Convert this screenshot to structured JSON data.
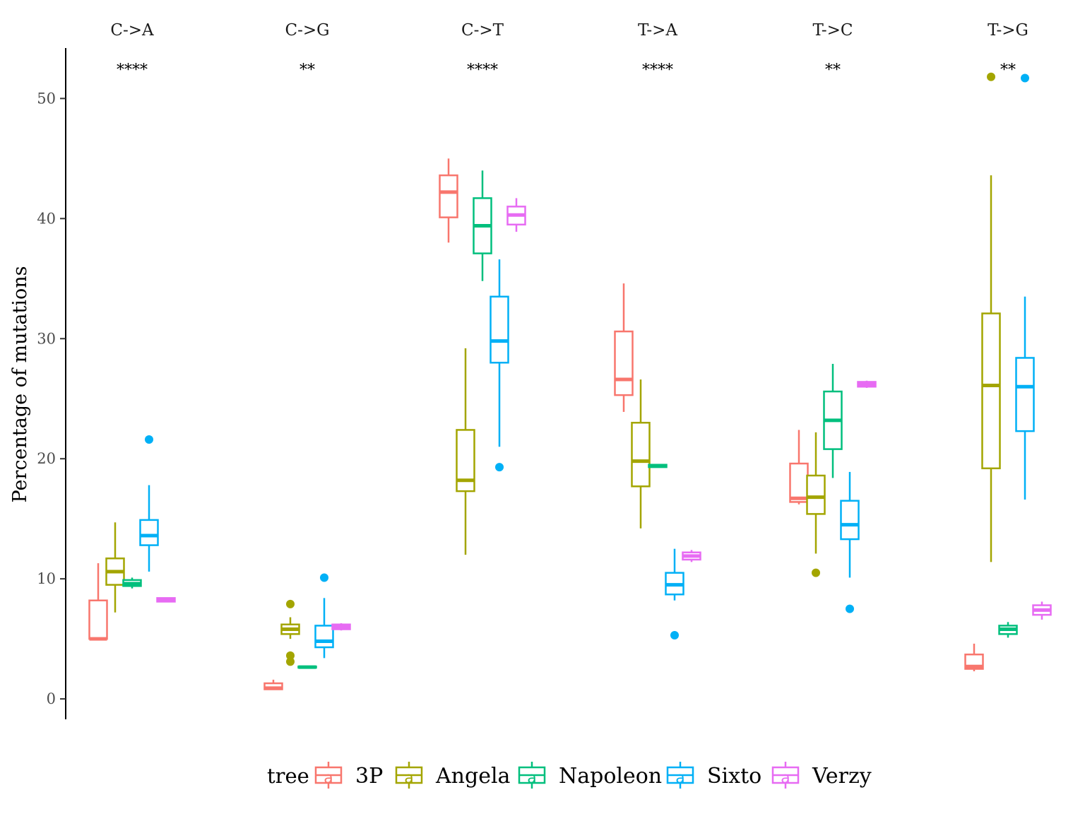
{
  "chart_data": {
    "type": "boxplot",
    "title": "",
    "ylabel": "Percentage of mutations",
    "xlabel": "",
    "ylim": [
      -1.7,
      54.2
    ],
    "yticks": [
      0,
      10,
      20,
      30,
      40,
      50
    ],
    "grid": false,
    "legend": {
      "title": "tree",
      "position": "bottom",
      "entries": [
        "3P",
        "Angela",
        "Napoleon",
        "Sixto",
        "Verzy"
      ],
      "key_glyph": "a"
    },
    "colors": {
      "3P": "#F8766D",
      "Angela": "#A3A500",
      "Napoleon": "#00BF7D",
      "Sixto": "#00B0F6",
      "Verzy": "#E76BF3"
    },
    "categories": [
      "C->A",
      "C->G",
      "C->T",
      "T->A",
      "T->C",
      "T->G"
    ],
    "significance": [
      "****",
      "**",
      "****",
      "****",
      "**",
      "**"
    ],
    "series": [
      {
        "name": "3P",
        "boxes": [
          {
            "q1": 5.0,
            "median": 5.0,
            "q3": 8.2,
            "whisker_low": 5.0,
            "whisker_high": 11.3,
            "outliers": []
          },
          {
            "q1": 0.8,
            "median": 0.9,
            "q3": 1.3,
            "whisker_low": 0.8,
            "whisker_high": 1.6,
            "outliers": []
          },
          {
            "q1": 40.1,
            "median": 42.2,
            "q3": 43.6,
            "whisker_low": 38.0,
            "whisker_high": 45.0,
            "outliers": []
          },
          {
            "q1": 25.3,
            "median": 26.6,
            "q3": 30.6,
            "whisker_low": 23.9,
            "whisker_high": 34.6,
            "outliers": []
          },
          {
            "q1": 16.4,
            "median": 16.7,
            "q3": 19.6,
            "whisker_low": 16.2,
            "whisker_high": 22.4,
            "outliers": []
          },
          {
            "q1": 2.5,
            "median": 2.7,
            "q3": 3.7,
            "whisker_low": 2.3,
            "whisker_high": 4.6,
            "outliers": []
          }
        ]
      },
      {
        "name": "Angela",
        "boxes": [
          {
            "q1": 9.5,
            "median": 10.6,
            "q3": 11.7,
            "whisker_low": 7.2,
            "whisker_high": 14.7,
            "outliers": []
          },
          {
            "q1": 5.4,
            "median": 5.8,
            "q3": 6.2,
            "whisker_low": 5.0,
            "whisker_high": 6.8,
            "outliers": [
              7.9,
              3.6,
              3.1
            ]
          },
          {
            "q1": 17.3,
            "median": 18.2,
            "q3": 22.4,
            "whisker_low": 12.0,
            "whisker_high": 29.2,
            "outliers": []
          },
          {
            "q1": 17.7,
            "median": 19.8,
            "q3": 23.0,
            "whisker_low": 14.2,
            "whisker_high": 26.6,
            "outliers": []
          },
          {
            "q1": 15.4,
            "median": 16.8,
            "q3": 18.6,
            "whisker_low": 12.1,
            "whisker_high": 22.2,
            "outliers": [
              10.5
            ]
          },
          {
            "q1": 19.2,
            "median": 26.1,
            "q3": 32.1,
            "whisker_low": 11.4,
            "whisker_high": 43.6,
            "outliers": [
              51.8
            ]
          }
        ]
      },
      {
        "name": "Napoleon",
        "boxes": [
          {
            "q1": 9.4,
            "median": 9.6,
            "q3": 9.9,
            "whisker_low": 9.2,
            "whisker_high": 10.1,
            "outliers": []
          },
          {
            "q1": 2.6,
            "median": 2.65,
            "q3": 2.7,
            "whisker_low": 2.6,
            "whisker_high": 2.7,
            "outliers": []
          },
          {
            "q1": 37.1,
            "median": 39.4,
            "q3": 41.7,
            "whisker_low": 34.8,
            "whisker_high": 44.0,
            "outliers": []
          },
          {
            "q1": 19.3,
            "median": 19.4,
            "q3": 19.5,
            "whisker_low": 19.3,
            "whisker_high": 19.5,
            "outliers": []
          },
          {
            "q1": 20.8,
            "median": 23.2,
            "q3": 25.6,
            "whisker_low": 18.4,
            "whisker_high": 27.9,
            "outliers": []
          },
          {
            "q1": 5.4,
            "median": 5.8,
            "q3": 6.1,
            "whisker_low": 5.1,
            "whisker_high": 6.4,
            "outliers": []
          }
        ]
      },
      {
        "name": "Sixto",
        "boxes": [
          {
            "q1": 12.8,
            "median": 13.6,
            "q3": 14.9,
            "whisker_low": 10.6,
            "whisker_high": 17.8,
            "outliers": [
              21.6
            ]
          },
          {
            "q1": 4.3,
            "median": 4.8,
            "q3": 6.1,
            "whisker_low": 3.4,
            "whisker_high": 8.4,
            "outliers": [
              10.1
            ]
          },
          {
            "q1": 28.0,
            "median": 29.8,
            "q3": 33.5,
            "whisker_low": 21.0,
            "whisker_high": 36.6,
            "outliers": [
              19.3
            ]
          },
          {
            "q1": 8.7,
            "median": 9.5,
            "q3": 10.5,
            "whisker_low": 8.2,
            "whisker_high": 12.5,
            "outliers": [
              5.3
            ]
          },
          {
            "q1": 13.3,
            "median": 14.5,
            "q3": 16.5,
            "whisker_low": 10.1,
            "whisker_high": 18.9,
            "outliers": [
              7.5
            ]
          },
          {
            "q1": 22.3,
            "median": 26.0,
            "q3": 28.4,
            "whisker_low": 16.6,
            "whisker_high": 33.5,
            "outliers": [
              51.7
            ]
          }
        ]
      },
      {
        "name": "Verzy",
        "boxes": [
          {
            "q1": 8.1,
            "median": 8.2,
            "q3": 8.4,
            "whisker_low": 8.1,
            "whisker_high": 8.4,
            "outliers": []
          },
          {
            "q1": 5.8,
            "median": 6.0,
            "q3": 6.2,
            "whisker_low": 5.7,
            "whisker_high": 6.3,
            "outliers": []
          },
          {
            "q1": 39.5,
            "median": 40.3,
            "q3": 41.0,
            "whisker_low": 38.9,
            "whisker_high": 41.7,
            "outliers": []
          },
          {
            "q1": 11.6,
            "median": 11.9,
            "q3": 12.2,
            "whisker_low": 11.4,
            "whisker_high": 12.4,
            "outliers": []
          },
          {
            "q1": 26.0,
            "median": 26.2,
            "q3": 26.4,
            "whisker_low": 25.9,
            "whisker_high": 26.5,
            "outliers": []
          },
          {
            "q1": 7.0,
            "median": 7.4,
            "q3": 7.8,
            "whisker_low": 6.6,
            "whisker_high": 8.1,
            "outliers": []
          }
        ]
      }
    ]
  }
}
